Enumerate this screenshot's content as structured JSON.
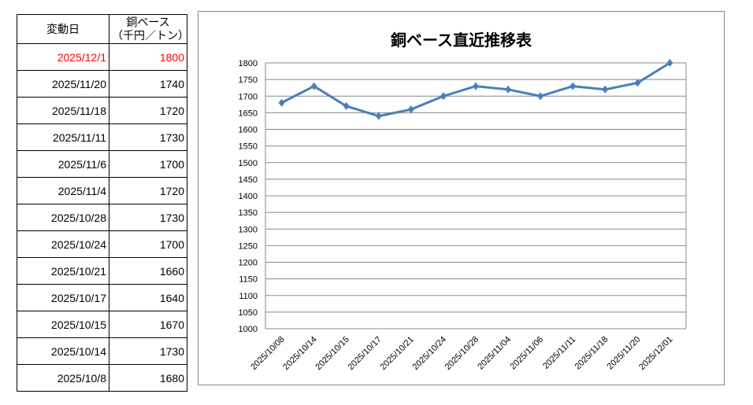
{
  "table": {
    "headers": [
      "変動日",
      "銅ベース",
      "（千円／トン）"
    ],
    "rows": [
      {
        "date": "2025/12/1",
        "value": "1800",
        "highlight": true
      },
      {
        "date": "2025/11/20",
        "value": "1740"
      },
      {
        "date": "2025/11/18",
        "value": "1720"
      },
      {
        "date": "2025/11/11",
        "value": "1730"
      },
      {
        "date": "2025/11/6",
        "value": "1700"
      },
      {
        "date": "2025/11/4",
        "value": "1720"
      },
      {
        "date": "2025/10/28",
        "value": "1730"
      },
      {
        "date": "2025/10/24",
        "value": "1700"
      },
      {
        "date": "2025/10/21",
        "value": "1660"
      },
      {
        "date": "2025/10/17",
        "value": "1640"
      },
      {
        "date": "2025/10/15",
        "value": "1670"
      },
      {
        "date": "2025/10/14",
        "value": "1730"
      },
      {
        "date": "2025/10/8",
        "value": "1680"
      }
    ]
  },
  "chart_data": {
    "type": "line",
    "title": "銅ベース直近推移表",
    "categories": [
      "2025/10/08",
      "2025/10/14",
      "2025/10/15",
      "2025/10/17",
      "2025/10/21",
      "2025/10/24",
      "2025/10/28",
      "2025/11/04",
      "2025/11/06",
      "2025/11/11",
      "2025/11/18",
      "2025/11/20",
      "2025/12/01"
    ],
    "series": [
      {
        "name": "銅ベース",
        "values": [
          1680,
          1730,
          1670,
          1640,
          1660,
          1700,
          1730,
          1720,
          1700,
          1730,
          1720,
          1740,
          1800
        ],
        "color": "#4a7ebb"
      }
    ],
    "ylim": [
      1000,
      1800
    ],
    "ytick_step": 50,
    "grid": true,
    "legend": "none",
    "xlabel": "",
    "ylabel": ""
  }
}
